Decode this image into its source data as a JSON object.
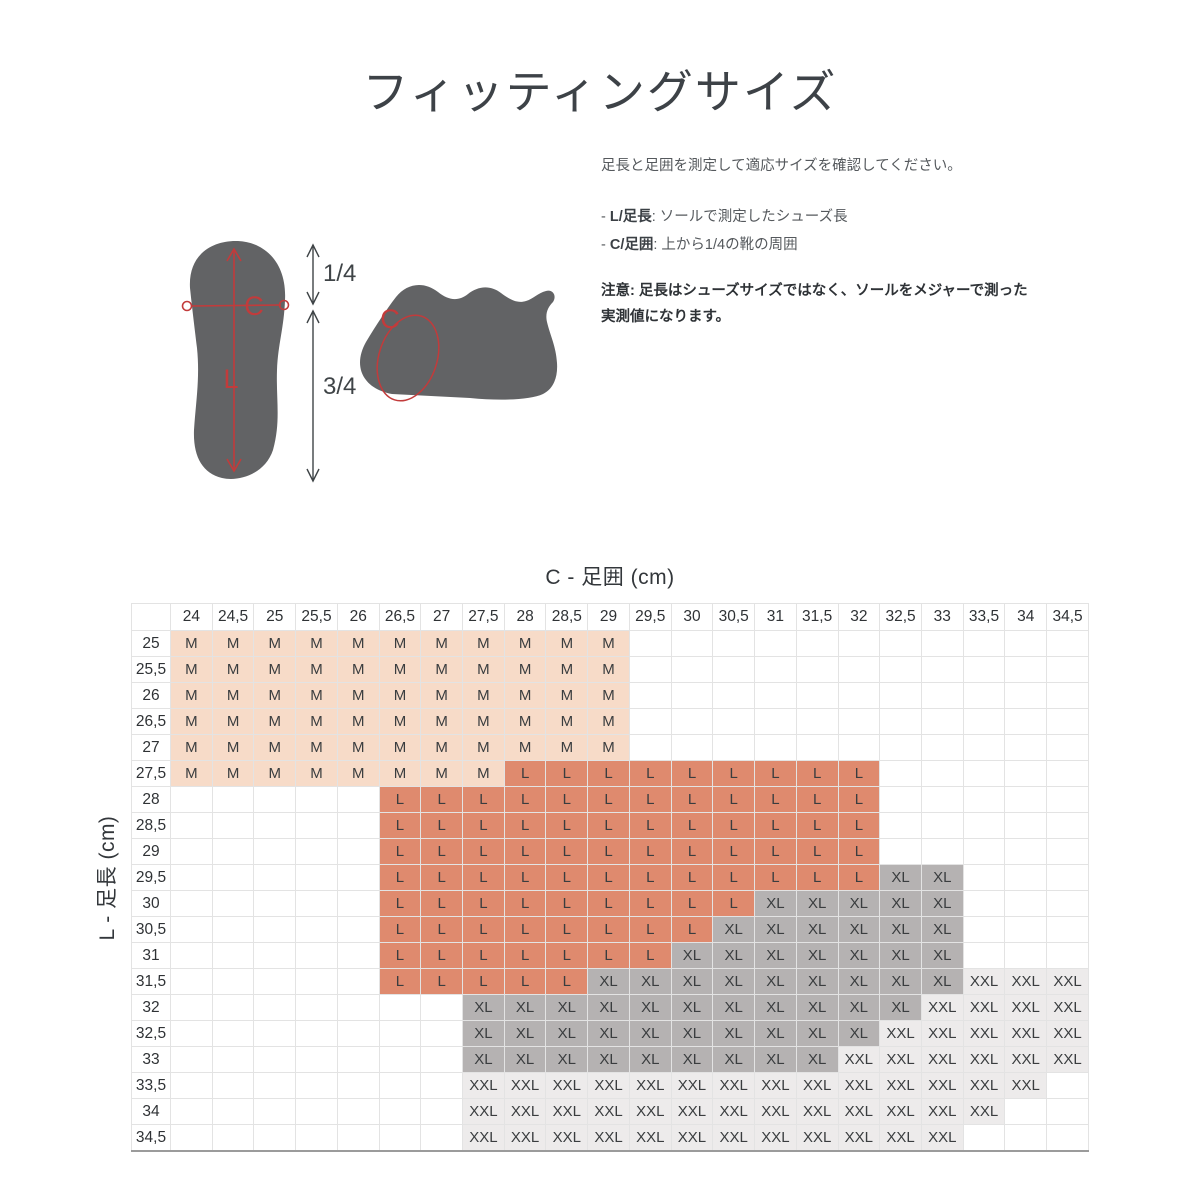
{
  "page": {
    "title": "フィッティングサイズ"
  },
  "instructions": {
    "intro": "足長と足囲を測定して適応サイズを確認してください。",
    "legend": [
      {
        "prefix": "- ",
        "term": "L/足長",
        "desc": ": ソールで測定したシューズ長"
      },
      {
        "prefix": "- ",
        "term": "C/足囲",
        "desc": ": 上から1/4の靴の周囲"
      }
    ],
    "note": "注意: 足長はシューズサイズではなく、ソールをメジャーで測った実測値になります。"
  },
  "diagram": {
    "sole_length_label": "L",
    "sole_girth_label": "C",
    "fraction_top": "1/4",
    "fraction_bottom": "3/4",
    "shoe_girth_label": "C",
    "annotation_color": "#c23b3b",
    "silhouette_color": "#626365",
    "arrow_color": "#3f4447"
  },
  "chart_data": {
    "type": "heatmap",
    "col_axis_title": "C - 足囲 (cm)",
    "row_axis_title": "L - 足長 (cm)",
    "columns": [
      "24",
      "24,5",
      "25",
      "25,5",
      "26",
      "26,5",
      "27",
      "27,5",
      "28",
      "28,5",
      "29",
      "29,5",
      "30",
      "30,5",
      "31",
      "31,5",
      "32",
      "32,5",
      "33",
      "33,5",
      "34",
      "34,5"
    ],
    "rows": [
      {
        "label": "25",
        "cells": [
          "M",
          "M",
          "M",
          "M",
          "M",
          "M",
          "M",
          "M",
          "M",
          "M",
          "M",
          "",
          "",
          "",
          "",
          "",
          "",
          "",
          "",
          "",
          "",
          ""
        ]
      },
      {
        "label": "25,5",
        "cells": [
          "M",
          "M",
          "M",
          "M",
          "M",
          "M",
          "M",
          "M",
          "M",
          "M",
          "M",
          "",
          "",
          "",
          "",
          "",
          "",
          "",
          "",
          "",
          "",
          ""
        ]
      },
      {
        "label": "26",
        "cells": [
          "M",
          "M",
          "M",
          "M",
          "M",
          "M",
          "M",
          "M",
          "M",
          "M",
          "M",
          "",
          "",
          "",
          "",
          "",
          "",
          "",
          "",
          "",
          "",
          ""
        ]
      },
      {
        "label": "26,5",
        "cells": [
          "M",
          "M",
          "M",
          "M",
          "M",
          "M",
          "M",
          "M",
          "M",
          "M",
          "M",
          "",
          "",
          "",
          "",
          "",
          "",
          "",
          "",
          "",
          "",
          ""
        ]
      },
      {
        "label": "27",
        "cells": [
          "M",
          "M",
          "M",
          "M",
          "M",
          "M",
          "M",
          "M",
          "M",
          "M",
          "M",
          "",
          "",
          "",
          "",
          "",
          "",
          "",
          "",
          "",
          "",
          ""
        ]
      },
      {
        "label": "27,5",
        "cells": [
          "M",
          "M",
          "M",
          "M",
          "M",
          "M",
          "M",
          "M",
          "L",
          "L",
          "L",
          "L",
          "L",
          "L",
          "L",
          "L",
          "L",
          "",
          "",
          "",
          "",
          ""
        ]
      },
      {
        "label": "28",
        "cells": [
          "",
          "",
          "",
          "",
          "",
          "L",
          "L",
          "L",
          "L",
          "L",
          "L",
          "L",
          "L",
          "L",
          "L",
          "L",
          "L",
          "",
          "",
          "",
          "",
          ""
        ]
      },
      {
        "label": "28,5",
        "cells": [
          "",
          "",
          "",
          "",
          "",
          "L",
          "L",
          "L",
          "L",
          "L",
          "L",
          "L",
          "L",
          "L",
          "L",
          "L",
          "L",
          "",
          "",
          "",
          "",
          ""
        ]
      },
      {
        "label": "29",
        "cells": [
          "",
          "",
          "",
          "",
          "",
          "L",
          "L",
          "L",
          "L",
          "L",
          "L",
          "L",
          "L",
          "L",
          "L",
          "L",
          "L",
          "",
          "",
          "",
          "",
          ""
        ]
      },
      {
        "label": "29,5",
        "cells": [
          "",
          "",
          "",
          "",
          "",
          "L",
          "L",
          "L",
          "L",
          "L",
          "L",
          "L",
          "L",
          "L",
          "L",
          "L",
          "L",
          "XL",
          "XL",
          "",
          "",
          ""
        ]
      },
      {
        "label": "30",
        "cells": [
          "",
          "",
          "",
          "",
          "",
          "L",
          "L",
          "L",
          "L",
          "L",
          "L",
          "L",
          "L",
          "L",
          "XL",
          "XL",
          "XL",
          "XL",
          "XL",
          "",
          "",
          ""
        ]
      },
      {
        "label": "30,5",
        "cells": [
          "",
          "",
          "",
          "",
          "",
          "L",
          "L",
          "L",
          "L",
          "L",
          "L",
          "L",
          "L",
          "XL",
          "XL",
          "XL",
          "XL",
          "XL",
          "XL",
          "",
          "",
          ""
        ]
      },
      {
        "label": "31",
        "cells": [
          "",
          "",
          "",
          "",
          "",
          "L",
          "L",
          "L",
          "L",
          "L",
          "L",
          "L",
          "XL",
          "XL",
          "XL",
          "XL",
          "XL",
          "XL",
          "XL",
          "",
          "",
          ""
        ]
      },
      {
        "label": "31,5",
        "cells": [
          "",
          "",
          "",
          "",
          "",
          "L",
          "L",
          "L",
          "L",
          "L",
          "XL",
          "XL",
          "XL",
          "XL",
          "XL",
          "XL",
          "XL",
          "XL",
          "XL",
          "XXL",
          "XXL",
          "XXL"
        ]
      },
      {
        "label": "32",
        "cells": [
          "",
          "",
          "",
          "",
          "",
          "",
          "",
          "XL",
          "XL",
          "XL",
          "XL",
          "XL",
          "XL",
          "XL",
          "XL",
          "XL",
          "XL",
          "XL",
          "XXL",
          "XXL",
          "XXL",
          "XXL"
        ]
      },
      {
        "label": "32,5",
        "cells": [
          "",
          "",
          "",
          "",
          "",
          "",
          "",
          "XL",
          "XL",
          "XL",
          "XL",
          "XL",
          "XL",
          "XL",
          "XL",
          "XL",
          "XL",
          "XXL",
          "XXL",
          "XXL",
          "XXL",
          "XXL"
        ]
      },
      {
        "label": "33",
        "cells": [
          "",
          "",
          "",
          "",
          "",
          "",
          "",
          "XL",
          "XL",
          "XL",
          "XL",
          "XL",
          "XL",
          "XL",
          "XL",
          "XL",
          "XXL",
          "XXL",
          "XXL",
          "XXL",
          "XXL",
          "XXL"
        ]
      },
      {
        "label": "33,5",
        "cells": [
          "",
          "",
          "",
          "",
          "",
          "",
          "",
          "XXL",
          "XXL",
          "XXL",
          "XXL",
          "XXL",
          "XXL",
          "XXL",
          "XXL",
          "XXL",
          "XXL",
          "XXL",
          "XXL",
          "XXL",
          "XXL",
          ""
        ]
      },
      {
        "label": "34",
        "cells": [
          "",
          "",
          "",
          "",
          "",
          "",
          "",
          "XXL",
          "XXL",
          "XXL",
          "XXL",
          "XXL",
          "XXL",
          "XXL",
          "XXL",
          "XXL",
          "XXL",
          "XXL",
          "XXL",
          "XXL",
          "",
          ""
        ]
      },
      {
        "label": "34,5",
        "cells": [
          "",
          "",
          "",
          "",
          "",
          "",
          "",
          "XXL",
          "XXL",
          "XXL",
          "XXL",
          "XXL",
          "XXL",
          "XXL",
          "XXL",
          "XXL",
          "XXL",
          "XXL",
          "XXL",
          "",
          "",
          ""
        ]
      }
    ],
    "size_colors": {
      "M": "#f7dbc8",
      "L": "#df8a6e",
      "XL": "#b5b2b2",
      "XXL": "#edebeb"
    }
  }
}
